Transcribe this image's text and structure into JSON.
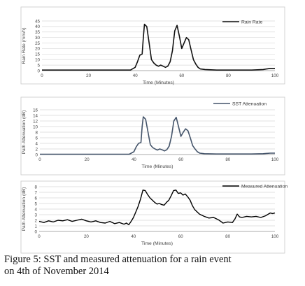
{
  "caption": {
    "line1": "Figure 5: SST and measured attenuation for a rain event",
    "line2": "on 4th of November 2014"
  },
  "colors": {
    "rain": "#111111",
    "sst": "#44546a",
    "measured": "#000000",
    "grid": "#d9d9d9"
  },
  "chart_data": [
    {
      "type": "line",
      "title": "",
      "xlabel": "Time (Minutes)",
      "ylabel": "Rain Rate (mm/h)",
      "xlim": [
        0,
        100
      ],
      "ylim": [
        0,
        45
      ],
      "xticks": [
        0,
        20,
        40,
        60,
        80,
        100
      ],
      "yticks": [
        0,
        5,
        10,
        15,
        20,
        25,
        30,
        35,
        40,
        45
      ],
      "grid": true,
      "legend": "top-right",
      "series": [
        {
          "name": "Rain Rate",
          "x": [
            0,
            10,
            20,
            30,
            38,
            40,
            41,
            42,
            43,
            43.5,
            44,
            45,
            46,
            47,
            48,
            49,
            50,
            51,
            52,
            53,
            54,
            55,
            56,
            57,
            58,
            59,
            60,
            61,
            62,
            63,
            64,
            65,
            66,
            67,
            68,
            70,
            75,
            80,
            85,
            90,
            95,
            98,
            99,
            100
          ],
          "y": [
            0.5,
            0.5,
            0.5,
            0.5,
            0.5,
            3,
            8,
            14,
            15,
            30,
            42,
            40,
            25,
            10,
            7,
            5,
            4,
            5,
            4,
            3,
            4,
            8,
            18,
            36,
            41,
            31,
            20,
            25,
            30,
            28,
            19,
            10,
            6,
            3,
            1.5,
            1,
            0.5,
            0.5,
            0.5,
            0.5,
            1,
            2,
            2,
            2
          ]
        }
      ]
    },
    {
      "type": "line",
      "title": "",
      "xlabel": "Time (Minutes)",
      "ylabel": "Path Attenuation (dB)",
      "xlim": [
        0,
        100
      ],
      "ylim": [
        0,
        16
      ],
      "xticks": [
        0,
        20,
        40,
        60,
        80,
        100
      ],
      "yticks": [
        0,
        2,
        4,
        6,
        8,
        10,
        12,
        14,
        16
      ],
      "grid": true,
      "legend": "top-right",
      "series": [
        {
          "name": "SST Attenuation",
          "x": [
            0,
            10,
            20,
            30,
            38,
            40,
            41,
            42,
            43,
            43.5,
            44,
            45,
            46,
            47,
            48,
            49,
            50,
            51,
            52,
            53,
            54,
            55,
            56,
            57,
            58,
            59,
            60,
            61,
            62,
            63,
            64,
            65,
            66,
            67,
            68,
            70,
            75,
            80,
            85,
            90,
            95,
            98,
            99,
            100
          ],
          "y": [
            0.1,
            0.1,
            0.1,
            0.1,
            0.1,
            1,
            2.8,
            4,
            4.3,
            10,
            13.5,
            12.6,
            8,
            3.5,
            2.5,
            2,
            1.6,
            2,
            1.7,
            1.3,
            1.7,
            3,
            6.5,
            12,
            13.3,
            10,
            6.5,
            8,
            9.2,
            8.5,
            6,
            3.2,
            2,
            1,
            0.5,
            0.3,
            0.2,
            0.2,
            0.2,
            0.2,
            0.3,
            0.5,
            0.5,
            0.5
          ]
        }
      ]
    },
    {
      "type": "line",
      "title": "",
      "xlabel": "Time (Minutes)",
      "ylabel": "Path Attenuation (dB)",
      "xlim": [
        0,
        100
      ],
      "ylim": [
        0,
        8
      ],
      "xticks": [
        0,
        20,
        40,
        60,
        80,
        100
      ],
      "yticks": [
        0,
        1,
        2,
        3,
        4,
        5,
        6,
        7,
        8
      ],
      "grid": true,
      "legend": "top-right",
      "series": [
        {
          "name": "Measured Attenuation",
          "x": [
            0,
            2,
            4,
            6,
            8,
            10,
            12,
            14,
            16,
            18,
            20,
            22,
            24,
            26,
            28,
            30,
            32,
            34,
            36,
            37,
            38,
            39,
            40,
            41,
            42,
            43,
            44,
            45,
            46,
            47,
            48,
            49,
            50,
            51,
            52,
            53,
            54,
            55,
            56,
            57,
            58,
            59,
            60,
            61,
            62,
            63,
            64,
            65,
            66,
            67,
            68,
            70,
            72,
            74,
            76,
            78,
            80,
            82,
            83,
            84,
            85,
            86,
            88,
            90,
            92,
            94,
            96,
            98,
            99,
            100
          ],
          "y": [
            1.8,
            1.6,
            1.9,
            1.7,
            2.0,
            1.9,
            2.1,
            1.8,
            2.0,
            2.2,
            1.9,
            1.7,
            1.9,
            1.6,
            1.5,
            1.8,
            1.4,
            1.6,
            1.3,
            1.5,
            1.2,
            1.8,
            2.5,
            3.5,
            4.5,
            5.8,
            7.4,
            7.3,
            6.6,
            6.0,
            5.6,
            5.2,
            4.9,
            5.0,
            4.8,
            4.7,
            5.2,
            5.6,
            6.4,
            7.3,
            7.4,
            6.8,
            6.9,
            6.5,
            6.7,
            6.2,
            5.6,
            4.6,
            3.9,
            3.5,
            3.1,
            2.7,
            2.4,
            2.5,
            2.1,
            1.5,
            1.7,
            1.6,
            2.2,
            3.1,
            2.6,
            2.5,
            2.7,
            2.6,
            2.7,
            2.5,
            2.8,
            3.3,
            3.2,
            3.3
          ]
        }
      ]
    }
  ]
}
